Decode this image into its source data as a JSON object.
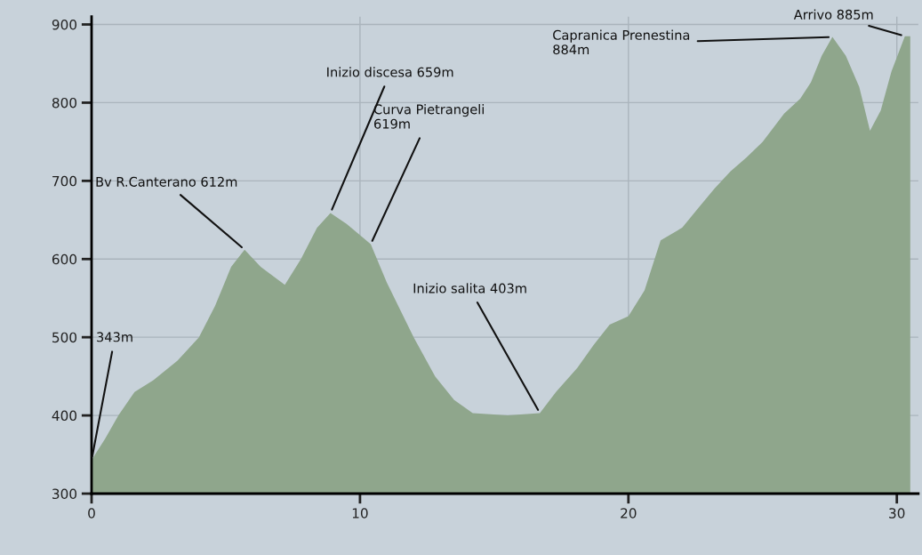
{
  "chart_data": {
    "type": "area",
    "x": [
      0,
      0.5,
      1,
      1.6,
      2.3,
      3.2,
      4,
      4.6,
      5.2,
      5.7,
      6.3,
      7.2,
      7.8,
      8.4,
      8.9,
      9.5,
      10.4,
      11,
      12,
      12.8,
      13.5,
      14.2,
      15.5,
      16.7,
      17.3,
      18.1,
      18.7,
      19.3,
      20,
      20.6,
      21.2,
      22,
      22.6,
      23.2,
      23.8,
      24.4,
      25,
      25.8,
      26.4,
      26.8,
      27.2,
      27.6,
      28.1,
      28.6,
      29,
      29.4,
      29.8,
      30.3,
      30.5
    ],
    "series": [
      {
        "color": "#8fa68c",
        "values": [
          343,
          370,
          400,
          430,
          445,
          470,
          500,
          540,
          590,
          612,
          590,
          567,
          600,
          640,
          659,
          645,
          619,
          570,
          500,
          450,
          420,
          403,
          400,
          403,
          430,
          461,
          490,
          516,
          527,
          560,
          624,
          640,
          665,
          690,
          712,
          730,
          750,
          786,
          805,
          826,
          860,
          884,
          860,
          820,
          764,
          790,
          840,
          885,
          885
        ]
      }
    ],
    "xlim": [
      0,
      30.8
    ],
    "ylim": [
      300,
      910
    ],
    "xticks": [
      0,
      10,
      20,
      30
    ],
    "yticks": [
      300,
      400,
      500,
      600,
      700,
      800,
      900
    ],
    "grid": true,
    "annotations": [
      {
        "text": "343m",
        "x": 0,
        "y": 343
      },
      {
        "text": "Bv R.Canterano 612m",
        "x": 5.7,
        "y": 612
      },
      {
        "text": "Inizio discesa 659m",
        "x": 8.9,
        "y": 659
      },
      {
        "text": "Curva Pietrangeli\n619m",
        "x": 10.4,
        "y": 619
      },
      {
        "text": "Inizio salita 403m",
        "x": 16.7,
        "y": 403
      },
      {
        "text": "Capranica Prenestina\n884m",
        "x": 27.6,
        "y": 884
      },
      {
        "text": "Arrivo 885m",
        "x": 30.3,
        "y": 885
      }
    ]
  }
}
